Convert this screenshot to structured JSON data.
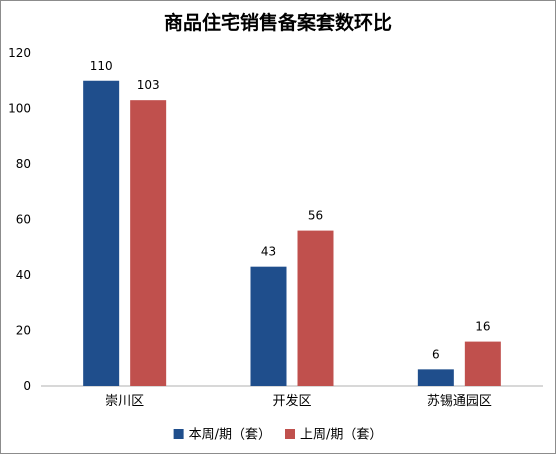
{
  "chart_data": {
    "type": "bar",
    "title": "商品住宅销售备案套数环比",
    "categories": [
      "崇川区",
      "开发区",
      "苏锡通园区"
    ],
    "series": [
      {
        "name": "本周/期（套）",
        "values": [
          110,
          43,
          6
        ],
        "color": "#1f4e8c"
      },
      {
        "name": "上周/期（套）",
        "values": [
          103,
          56,
          16
        ],
        "color": "#c0504d"
      }
    ],
    "ylim": [
      0,
      120
    ],
    "yticks": [
      0,
      20,
      40,
      60,
      80,
      100,
      120
    ],
    "grid": false,
    "legend": "bottom"
  }
}
